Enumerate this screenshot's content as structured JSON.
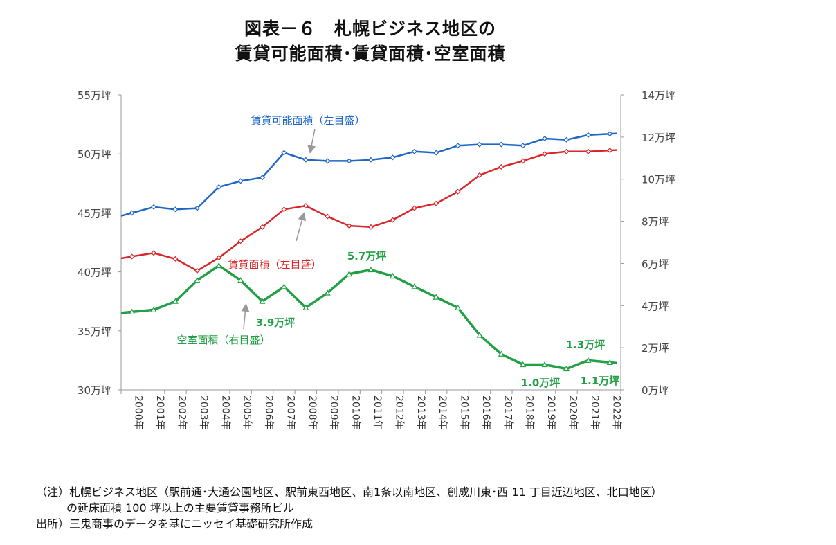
{
  "title": {
    "line1": "図表－６　札幌ビジネス地区の",
    "line2": "賃貸可能面積･賃貸面積･空室面積"
  },
  "colors": {
    "rentable": "#1f66c9",
    "leased": "#d9262a",
    "vacant": "#22a045",
    "axis": "#999999"
  },
  "chart_data": {
    "type": "line",
    "categories": [
      "2000年",
      "2001年",
      "2002年",
      "2003年",
      "2004年",
      "2005年",
      "2006年",
      "2007年",
      "2008年",
      "2009年",
      "2010年",
      "2011年",
      "2012年",
      "2013年",
      "2014年",
      "2015年",
      "2016年",
      "2017年",
      "2018年",
      "2019年",
      "2020年",
      "2021年",
      "2022年"
    ],
    "left_axis": {
      "min": 30,
      "max": 55,
      "ticks": [
        55,
        50,
        45,
        40,
        35,
        30
      ],
      "tick_labels": [
        "55万坪",
        "50万坪",
        "45万坪",
        "40万坪",
        "35万坪",
        "30万坪"
      ]
    },
    "right_axis": {
      "min": 0,
      "max": 14,
      "ticks": [
        14,
        12,
        10,
        8,
        6,
        4,
        2,
        0
      ],
      "tick_labels": [
        "14万坪",
        "12万坪",
        "10万坪",
        "8万坪",
        "6万坪",
        "4万坪",
        "2万坪",
        "0万坪"
      ]
    },
    "series": [
      {
        "name": "賃貸可能面積（左目盛）",
        "axis": "left",
        "values": [
          45.0,
          45.5,
          45.3,
          45.4,
          47.2,
          47.7,
          48.0,
          50.1,
          49.5,
          49.4,
          49.4,
          49.5,
          49.7,
          50.2,
          50.1,
          50.7,
          50.8,
          50.8,
          50.7,
          51.3,
          51.2,
          51.6,
          51.7
        ]
      },
      {
        "name": "賃貸面積（左目盛）",
        "axis": "left",
        "values": [
          41.3,
          41.6,
          41.1,
          40.1,
          41.2,
          42.6,
          43.8,
          45.3,
          45.6,
          44.7,
          43.9,
          43.8,
          44.4,
          45.4,
          45.8,
          46.8,
          48.2,
          48.9,
          49.4,
          50.0,
          50.2,
          50.2,
          50.3
        ]
      },
      {
        "name": "空室面積（右目盛）",
        "axis": "right",
        "values": [
          3.7,
          3.8,
          4.2,
          5.2,
          5.9,
          5.2,
          4.2,
          4.9,
          3.9,
          4.6,
          5.5,
          5.7,
          5.4,
          4.9,
          4.4,
          3.9,
          2.6,
          1.7,
          1.2,
          1.2,
          1.0,
          1.4,
          1.3
        ]
      }
    ],
    "series_labels": {
      "rentable": "賃貸可能面積（左目盛）",
      "leased": "賃貸面積（左目盛）",
      "vacant": "空室面積（右目盛）"
    },
    "annotations": [
      "5.7万坪",
      "3.9万坪",
      "1.3万坪",
      "1.0万坪",
      "1.1万坪"
    ]
  },
  "notes": {
    "line1": "（注）札幌ビジネス地区（駅前通･大通公園地区、駅前東西地区、南1条以南地区、創成川東･西 11 丁目近辺地区、北口地区）",
    "line2": "の延床面積 100 坪以上の主要賃貸事務所ビル",
    "source": "出所）三鬼商事のデータを基にニッセイ基礎研究所作成"
  }
}
